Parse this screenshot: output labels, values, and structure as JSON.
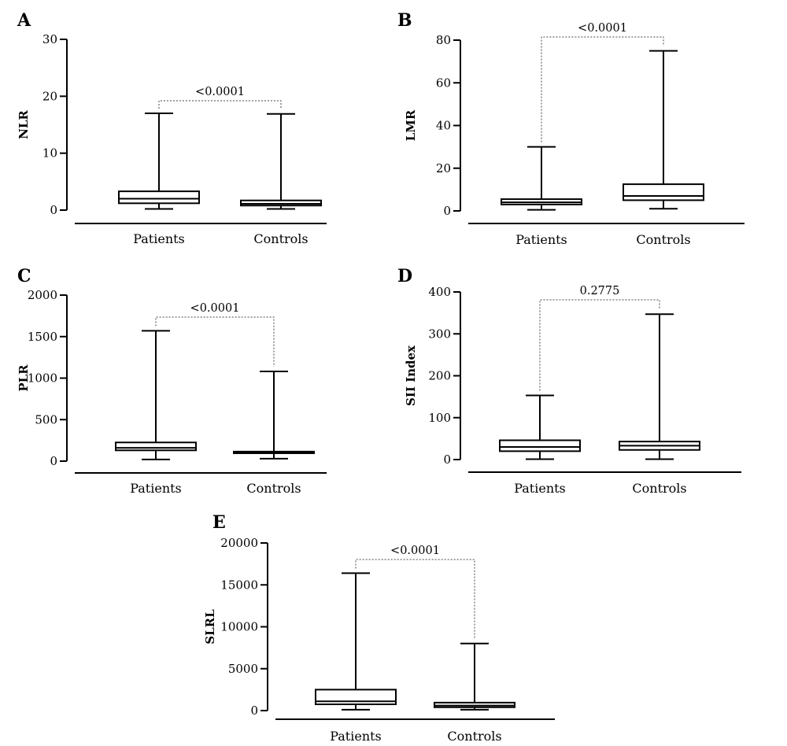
{
  "chart_data": [
    {
      "panel": "A",
      "type": "box",
      "ylabel": "NLR",
      "yticks": [
        0,
        10,
        20,
        30
      ],
      "ylim": [
        0,
        30
      ],
      "categories": [
        "Patients",
        "Controls"
      ],
      "boxes": [
        {
          "name": "Patients",
          "min": 0.2,
          "q1": 1.2,
          "median": 2.0,
          "q3": 3.3,
          "max": 17.0
        },
        {
          "name": "Controls",
          "min": 0.2,
          "q1": 0.8,
          "median": 1.1,
          "q3": 1.7,
          "max": 16.9
        }
      ],
      "pvalue": "<0.0001"
    },
    {
      "panel": "B",
      "type": "box",
      "ylabel": "LMR",
      "yticks": [
        0,
        20,
        40,
        60,
        80
      ],
      "ylim": [
        0,
        80
      ],
      "categories": [
        "Patients",
        "Controls"
      ],
      "boxes": [
        {
          "name": "Patients",
          "min": 0.5,
          "q1": 3.0,
          "median": 4.0,
          "q3": 5.5,
          "max": 30.0
        },
        {
          "name": "Controls",
          "min": 1.0,
          "q1": 5.0,
          "median": 7.0,
          "q3": 12.5,
          "max": 75.0
        }
      ],
      "pvalue": "<0.0001"
    },
    {
      "panel": "C",
      "type": "box",
      "ylabel": "PLR",
      "yticks": [
        0,
        500,
        1000,
        1500,
        2000
      ],
      "ylim": [
        0,
        2000
      ],
      "categories": [
        "Patients",
        "Controls"
      ],
      "boxes": [
        {
          "name": "Patients",
          "min": 20,
          "q1": 130,
          "median": 160,
          "q3": 225,
          "max": 1570
        },
        {
          "name": "Controls",
          "min": 30,
          "q1": 95,
          "median": 105,
          "q3": 115,
          "max": 1080
        }
      ],
      "pvalue": "<0.0001"
    },
    {
      "panel": "D",
      "type": "box",
      "ylabel": "SII Index",
      "yticks": [
        0,
        100,
        200,
        300,
        400
      ],
      "ylim": [
        0,
        400
      ],
      "categories": [
        "Patients",
        "Controls"
      ],
      "boxes": [
        {
          "name": "Patients",
          "min": 1,
          "q1": 20,
          "median": 30,
          "q3": 46,
          "max": 153
        },
        {
          "name": "Controls",
          "min": 1,
          "q1": 23,
          "median": 33,
          "q3": 43,
          "max": 347
        }
      ],
      "pvalue": "0.2775"
    },
    {
      "panel": "E",
      "type": "box",
      "ylabel": "SLRL",
      "yticks": [
        0,
        5000,
        10000,
        15000,
        20000
      ],
      "ylim": [
        0,
        20000
      ],
      "categories": [
        "Patients",
        "Controls"
      ],
      "boxes": [
        {
          "name": "Patients",
          "min": 100,
          "q1": 750,
          "median": 1100,
          "q3": 2500,
          "max": 16400
        },
        {
          "name": "Controls",
          "min": 100,
          "q1": 400,
          "median": 600,
          "q3": 950,
          "max": 8000
        }
      ],
      "pvalue": "<0.0001"
    }
  ]
}
